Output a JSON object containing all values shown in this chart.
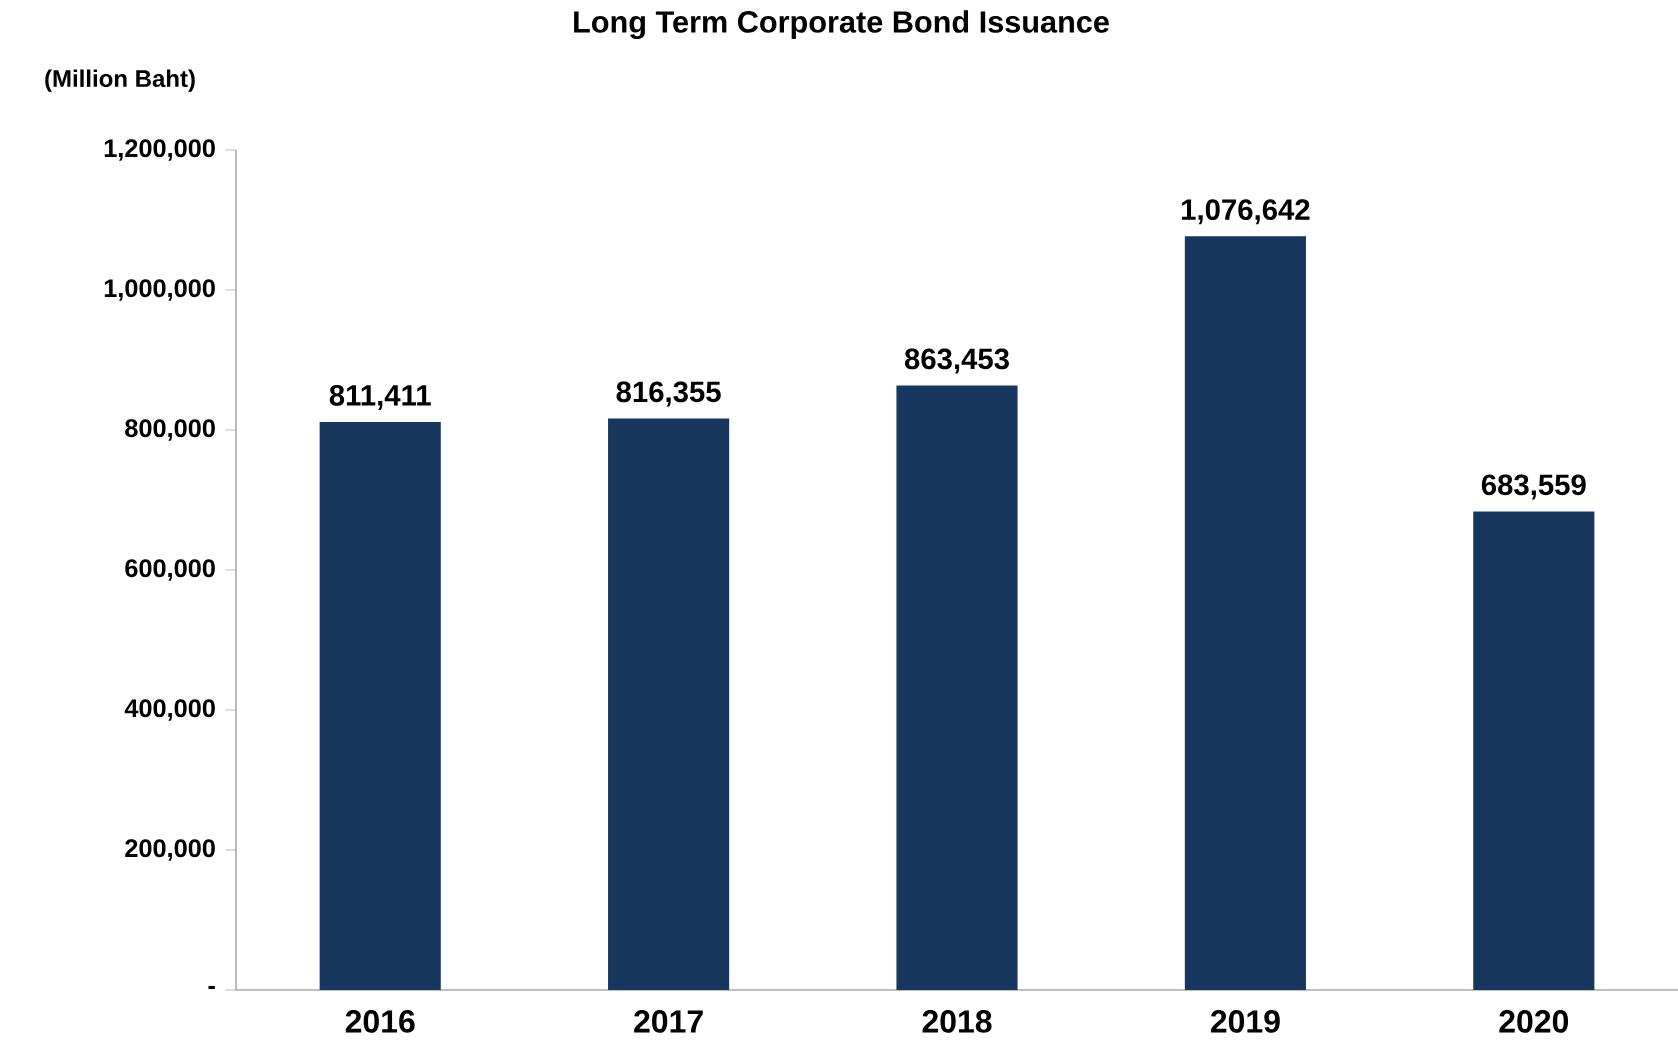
{
  "chart_data": {
    "type": "bar",
    "title": "Long Term Corporate Bond Issuance",
    "ylabel": "(Million Baht)",
    "categories": [
      "2016",
      "2017",
      "2018",
      "2019",
      "2020"
    ],
    "values": [
      811411,
      816355,
      863453,
      1076642,
      683559
    ],
    "value_labels": [
      "811,411",
      "816,355",
      "863,453",
      "1,076,642",
      "683,559"
    ],
    "color": "#17375e",
    "ylim": [
      0,
      1200000
    ],
    "yticks": [
      {
        "value": 0,
        "label": "-"
      },
      {
        "value": 200000,
        "label": "200,000"
      },
      {
        "value": 400000,
        "label": "400,000"
      },
      {
        "value": 600000,
        "label": "600,000"
      },
      {
        "value": 800000,
        "label": "800,000"
      },
      {
        "value": 1000000,
        "label": "1,000,000"
      },
      {
        "value": 1200000,
        "label": "1,200,000"
      }
    ]
  }
}
